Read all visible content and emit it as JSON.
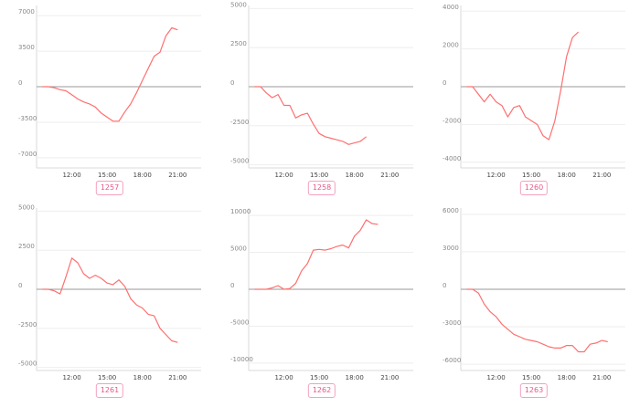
{
  "colors": {
    "line": "#ff6f6f",
    "zero": "#9a9a9a",
    "grid": "#eeeeee",
    "badge_border": "#f4a0c0",
    "badge_text": "#e8578a"
  },
  "chart_data": [
    {
      "type": "line",
      "label": "1257",
      "ylim": [
        -8000,
        8000
      ],
      "yticks": [
        7000,
        3500,
        0,
        -3500,
        -7000
      ],
      "xlim": [
        9,
        23
      ],
      "xticks": [
        "12:00",
        "15:00",
        "18:00",
        "21:00"
      ],
      "x": [
        9.5,
        10.0,
        10.5,
        11.0,
        11.5,
        12.0,
        12.5,
        13.0,
        13.5,
        14.0,
        14.5,
        15.0,
        15.5,
        16.0,
        16.5,
        17.0,
        17.5,
        18.0,
        18.5,
        19.0,
        19.5,
        20.0,
        20.5,
        21.0
      ],
      "values": [
        0,
        0,
        -100,
        -300,
        -400,
        -800,
        -1200,
        -1500,
        -1700,
        -2000,
        -2600,
        -3000,
        -3400,
        -3400,
        -2500,
        -1700,
        -600,
        600,
        1800,
        3000,
        3400,
        5000,
        5800,
        5600
      ]
    },
    {
      "type": "line",
      "label": "1258",
      "ylim": [
        -5200,
        5200
      ],
      "yticks": [
        5000,
        2500,
        0,
        -2500,
        -5000
      ],
      "xlim": [
        9,
        23
      ],
      "xticks": [
        "12:00",
        "15:00",
        "18:00",
        "21:00"
      ],
      "x": [
        9.5,
        10.0,
        10.5,
        11.0,
        11.5,
        12.0,
        12.5,
        13.0,
        13.5,
        14.0,
        14.5,
        15.0,
        15.5,
        16.0,
        16.5,
        17.0,
        17.5,
        18.0,
        18.5,
        19.0
      ],
      "values": [
        0,
        0,
        -400,
        -700,
        -500,
        -1200,
        -1200,
        -2000,
        -1800,
        -1700,
        -2400,
        -3000,
        -3200,
        -3300,
        -3400,
        -3500,
        -3700,
        -3600,
        -3500,
        -3200
      ]
    },
    {
      "type": "line",
      "label": "1260",
      "ylim": [
        -4300,
        4300
      ],
      "yticks": [
        4000,
        2000,
        0,
        -2000,
        -4000
      ],
      "xlim": [
        9,
        23
      ],
      "xticks": [
        "12:00",
        "15:00",
        "18:00",
        "21:00"
      ],
      "x": [
        9.5,
        10.0,
        10.5,
        11.0,
        11.5,
        12.0,
        12.5,
        13.0,
        13.5,
        14.0,
        14.5,
        15.0,
        15.5,
        16.0,
        16.5,
        17.0,
        17.5,
        18.0,
        18.5,
        19.0
      ],
      "values": [
        0,
        0,
        -400,
        -800,
        -400,
        -800,
        -1000,
        -1600,
        -1100,
        -1000,
        -1600,
        -1800,
        -2000,
        -2600,
        -2800,
        -1800,
        -200,
        1600,
        2600,
        2900
      ]
    },
    {
      "type": "line",
      "label": "1261",
      "ylim": [
        -5200,
        5200
      ],
      "yticks": [
        5000,
        2500,
        0,
        -2500,
        -5000
      ],
      "xlim": [
        9,
        23
      ],
      "xticks": [
        "12:00",
        "15:00",
        "18:00",
        "21:00"
      ],
      "x": [
        9.5,
        10.0,
        10.5,
        11.0,
        11.5,
        12.0,
        12.5,
        13.0,
        13.5,
        14.0,
        14.5,
        15.0,
        15.5,
        16.0,
        16.5,
        17.0,
        17.5,
        18.0,
        18.5,
        19.0,
        19.5,
        20.0,
        20.5,
        21.0
      ],
      "values": [
        0,
        0,
        -100,
        -300,
        800,
        2000,
        1700,
        1000,
        700,
        900,
        700,
        400,
        300,
        600,
        200,
        -600,
        -1000,
        -1200,
        -1600,
        -1700,
        -2500,
        -2900,
        -3300,
        -3400
      ]
    },
    {
      "type": "line",
      "label": "1262",
      "ylim": [
        -11000,
        11000
      ],
      "yticks": [
        10000,
        5000,
        0,
        -5000,
        -10000
      ],
      "xlim": [
        9,
        23
      ],
      "xticks": [
        "12:00",
        "15:00",
        "18:00",
        "21:00"
      ],
      "x": [
        9.5,
        10.0,
        10.5,
        11.0,
        11.5,
        12.0,
        12.5,
        13.0,
        13.5,
        14.0,
        14.5,
        15.0,
        15.5,
        16.0,
        16.5,
        17.0,
        17.5,
        18.0,
        18.5,
        19.0,
        19.5,
        20.0
      ],
      "values": [
        0,
        0,
        0,
        200,
        500,
        0,
        100,
        800,
        2500,
        3500,
        5300,
        5400,
        5300,
        5500,
        5800,
        6000,
        5600,
        7200,
        8000,
        9400,
        8900,
        8800
      ]
    },
    {
      "type": "line",
      "label": "1263",
      "ylim": [
        -6500,
        6500
      ],
      "yticks": [
        6000,
        3000,
        0,
        -3000,
        -6000
      ],
      "xlim": [
        9,
        23
      ],
      "xticks": [
        "12:00",
        "15:00",
        "18:00",
        "21:00"
      ],
      "x": [
        9.5,
        10.0,
        10.5,
        11.0,
        11.5,
        12.0,
        12.5,
        13.0,
        13.5,
        14.0,
        14.5,
        15.0,
        15.5,
        16.0,
        16.5,
        17.0,
        17.5,
        18.0,
        18.5,
        19.0,
        19.5,
        20.0,
        20.5,
        21.0,
        21.5
      ],
      "values": [
        0,
        0,
        -300,
        -1200,
        -1800,
        -2200,
        -2800,
        -3200,
        -3600,
        -3800,
        -4000,
        -4100,
        -4200,
        -4400,
        -4600,
        -4700,
        -4700,
        -4500,
        -4500,
        -5000,
        -5000,
        -4400,
        -4300,
        -4100,
        -4200
      ]
    }
  ]
}
